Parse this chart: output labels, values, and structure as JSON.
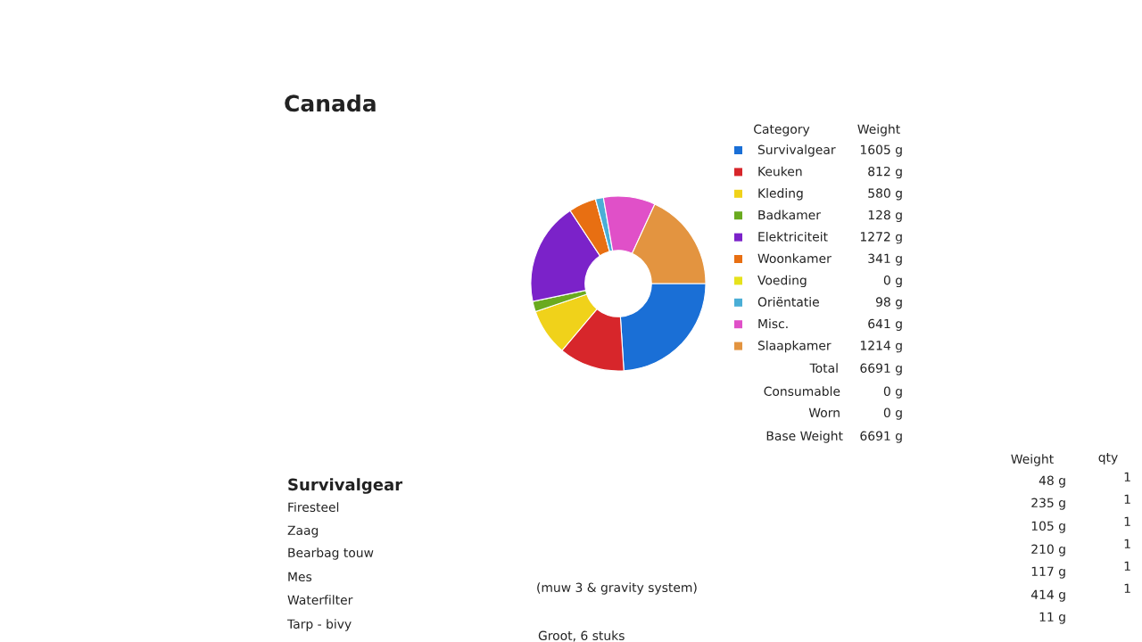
{
  "chart_data": {
    "type": "donut",
    "title": "Canada",
    "categories": [
      "Survivalgear",
      "Keuken",
      "Kleding",
      "Badkamer",
      "Elektriciteit",
      "Woonkamer",
      "Voeding",
      "Oriëntatie",
      "Misc.",
      "Slaapkamer"
    ],
    "values": [
      1605,
      812,
      580,
      128,
      1272,
      341,
      0,
      98,
      641,
      1214
    ],
    "value_labels": [
      "1605 g",
      "812 g",
      "580 g",
      "128 g",
      "1272 g",
      "341 g",
      "0 g",
      "98 g",
      "641 g",
      "1214 g"
    ],
    "colors": [
      "#1a6fd6",
      "#d7262b",
      "#f0d21a",
      "#6aaa1f",
      "#7b22c9",
      "#e86f12",
      "#e6e21c",
      "#4aaed6",
      "#e050c8",
      "#e39440"
    ],
    "legend": "right",
    "annotations": [
      "Category",
      "Weight",
      "Total",
      "6691 g",
      "Consumable",
      "0 g",
      "Worn",
      "0 g",
      "Base Weight",
      "6691 g",
      "Weight",
      "qty",
      "Survivalgear",
      "Firesteel",
      "Zaag",
      "Bearbag touw",
      "Mes",
      "Waterfilter",
      "Tarp - bivy",
      "(muw 3 & gravity system)",
      "Groot, 6 stuks",
      "48 g",
      "235 g",
      "105 g",
      "210 g",
      "117 g",
      "414 g",
      "11 g",
      "1",
      "1",
      "1",
      "1",
      "1",
      "1"
    ]
  }
}
